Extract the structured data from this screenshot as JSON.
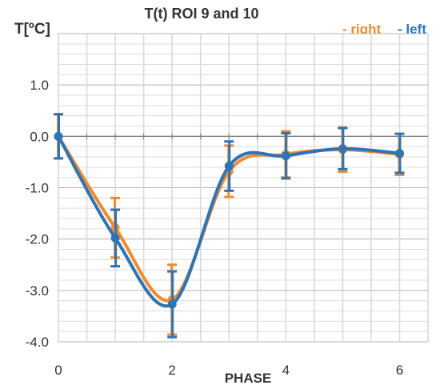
{
  "chart_data": {
    "type": "line",
    "title": "T(t)  ROI 9 and 10",
    "ylabel": "T[ºC]",
    "xlabel": "PHASE",
    "x": [
      0,
      1,
      2,
      3,
      4,
      5,
      6
    ],
    "xlim": [
      0,
      6.5
    ],
    "ylim": [
      -4.0,
      2.0
    ],
    "x_ticks": [
      0,
      2,
      4,
      6
    ],
    "y_ticks": [
      1.0,
      0.0,
      -1.0,
      -2.0,
      -3.0,
      -4.0
    ],
    "x_tick_labels": [
      "0",
      "2",
      "4",
      "6"
    ],
    "y_tick_labels": [
      "1.0",
      "0.0",
      "-1.0",
      "-2.0",
      "-3.0",
      "-4.0"
    ],
    "smooth": true,
    "grid": true,
    "legend_position": "top-right",
    "series": [
      {
        "name": "- right",
        "color": "#F28A2E",
        "values": [
          0.0,
          -1.78,
          -3.18,
          -0.68,
          -0.35,
          -0.26,
          -0.35
        ],
        "err": [
          0.43,
          0.58,
          0.68,
          0.5,
          0.45,
          0.43,
          0.4
        ]
      },
      {
        "name": "- left",
        "color": "#2E74B5",
        "values": [
          0.0,
          -1.98,
          -3.27,
          -0.58,
          -0.38,
          -0.24,
          -0.33
        ],
        "err": [
          0.43,
          0.55,
          0.64,
          0.48,
          0.44,
          0.4,
          0.38
        ]
      }
    ]
  }
}
